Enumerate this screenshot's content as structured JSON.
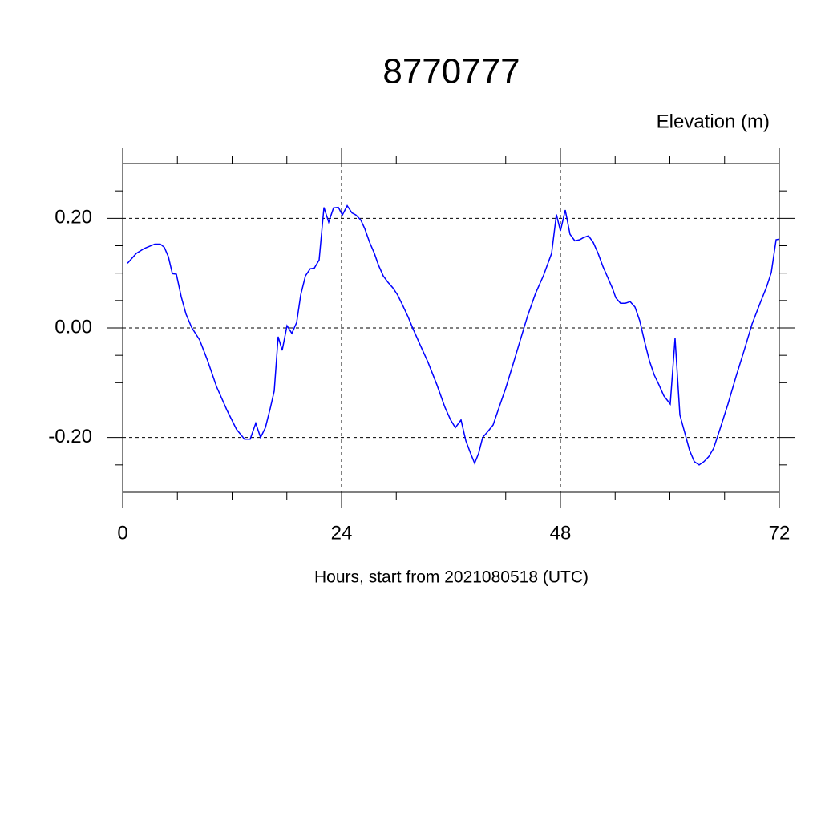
{
  "chart_data": {
    "type": "line",
    "title": "8770777",
    "y_label": "Elevation (m)",
    "x_label": "Hours, start from 2021080518 (UTC)",
    "xlim": [
      0,
      72
    ],
    "xticks": [
      0,
      24,
      48,
      72
    ],
    "ylim": [
      -0.3,
      0.3
    ],
    "yticks": [
      {
        "value": -0.2,
        "label": "-0.20"
      },
      {
        "value": 0,
        "label": "0.00"
      },
      {
        "value": 0.2,
        "label": "0.20"
      }
    ],
    "grid": true,
    "series": [
      {
        "color": "#0000ff",
        "x": [
          0.53,
          1.49,
          2.37,
          3.52,
          4.13,
          4.57,
          5.01,
          5.45,
          5.89,
          6.42,
          6.95,
          7.56,
          8.44,
          9.32,
          10.29,
          11.43,
          12.48,
          13.36,
          13.98,
          14.59,
          15.12,
          15.65,
          16.18,
          16.62,
          17.05,
          17.49,
          18.02,
          18.55,
          19.08,
          19.52,
          20.04,
          20.57,
          21.01,
          21.54,
          22.07,
          22.59,
          23.12,
          23.65,
          24.09,
          24.62,
          25.14,
          25.58,
          26.11,
          26.55,
          27.08,
          27.6,
          28.04,
          28.57,
          29.1,
          29.63,
          30.15,
          30.68,
          31.3,
          31.82,
          32.62,
          33.49,
          34.46,
          35.34,
          35.96,
          36.48,
          37.1,
          37.63,
          38.15,
          38.59,
          39.03,
          39.47,
          40.09,
          40.62,
          41.23,
          42.02,
          42.81,
          43.6,
          44.4,
          45.27,
          46.15,
          47.03,
          47.56,
          48.0,
          48.53,
          49.05,
          49.58,
          50.11,
          50.55,
          51.08,
          51.6,
          52.13,
          52.66,
          53.19,
          53.71,
          54.07,
          54.59,
          55.12,
          55.65,
          56.18,
          56.7,
          57.23,
          57.76,
          58.29,
          58.81,
          59.34,
          60.04,
          60.57,
          61.1,
          61.63,
          62.15,
          62.68,
          63.21,
          63.74,
          64.26,
          64.79,
          65.49,
          66.37,
          67.25,
          68.13,
          69.01,
          69.89,
          70.59,
          71.12,
          71.65,
          72.0
        ],
        "values": [
          0.118,
          0.136,
          0.145,
          0.153,
          0.153,
          0.147,
          0.13,
          0.099,
          0.098,
          0.057,
          0.025,
          0.001,
          -0.022,
          -0.06,
          -0.107,
          -0.15,
          -0.185,
          -0.203,
          -0.203,
          -0.174,
          -0.2,
          -0.182,
          -0.147,
          -0.115,
          -0.016,
          -0.041,
          0.004,
          -0.01,
          0.01,
          0.06,
          0.095,
          0.108,
          0.109,
          0.124,
          0.22,
          0.193,
          0.219,
          0.22,
          0.206,
          0.223,
          0.21,
          0.206,
          0.197,
          0.181,
          0.156,
          0.136,
          0.115,
          0.095,
          0.083,
          0.073,
          0.06,
          0.042,
          0.02,
          -0.001,
          -0.031,
          -0.063,
          -0.104,
          -0.145,
          -0.168,
          -0.182,
          -0.168,
          -0.206,
          -0.229,
          -0.247,
          -0.229,
          -0.2,
          -0.188,
          -0.177,
          -0.147,
          -0.109,
          -0.066,
          -0.022,
          0.022,
          0.063,
          0.096,
          0.136,
          0.207,
          0.177,
          0.215,
          0.171,
          0.159,
          0.161,
          0.165,
          0.168,
          0.156,
          0.136,
          0.112,
          0.092,
          0.072,
          0.055,
          0.045,
          0.045,
          0.048,
          0.038,
          0.013,
          -0.025,
          -0.06,
          -0.086,
          -0.104,
          -0.124,
          -0.139,
          -0.019,
          -0.159,
          -0.191,
          -0.223,
          -0.244,
          -0.25,
          -0.244,
          -0.235,
          -0.22,
          -0.185,
          -0.139,
          -0.089,
          -0.042,
          0.007,
          0.045,
          0.074,
          0.101,
          0.161,
          0.162
        ]
      }
    ]
  }
}
